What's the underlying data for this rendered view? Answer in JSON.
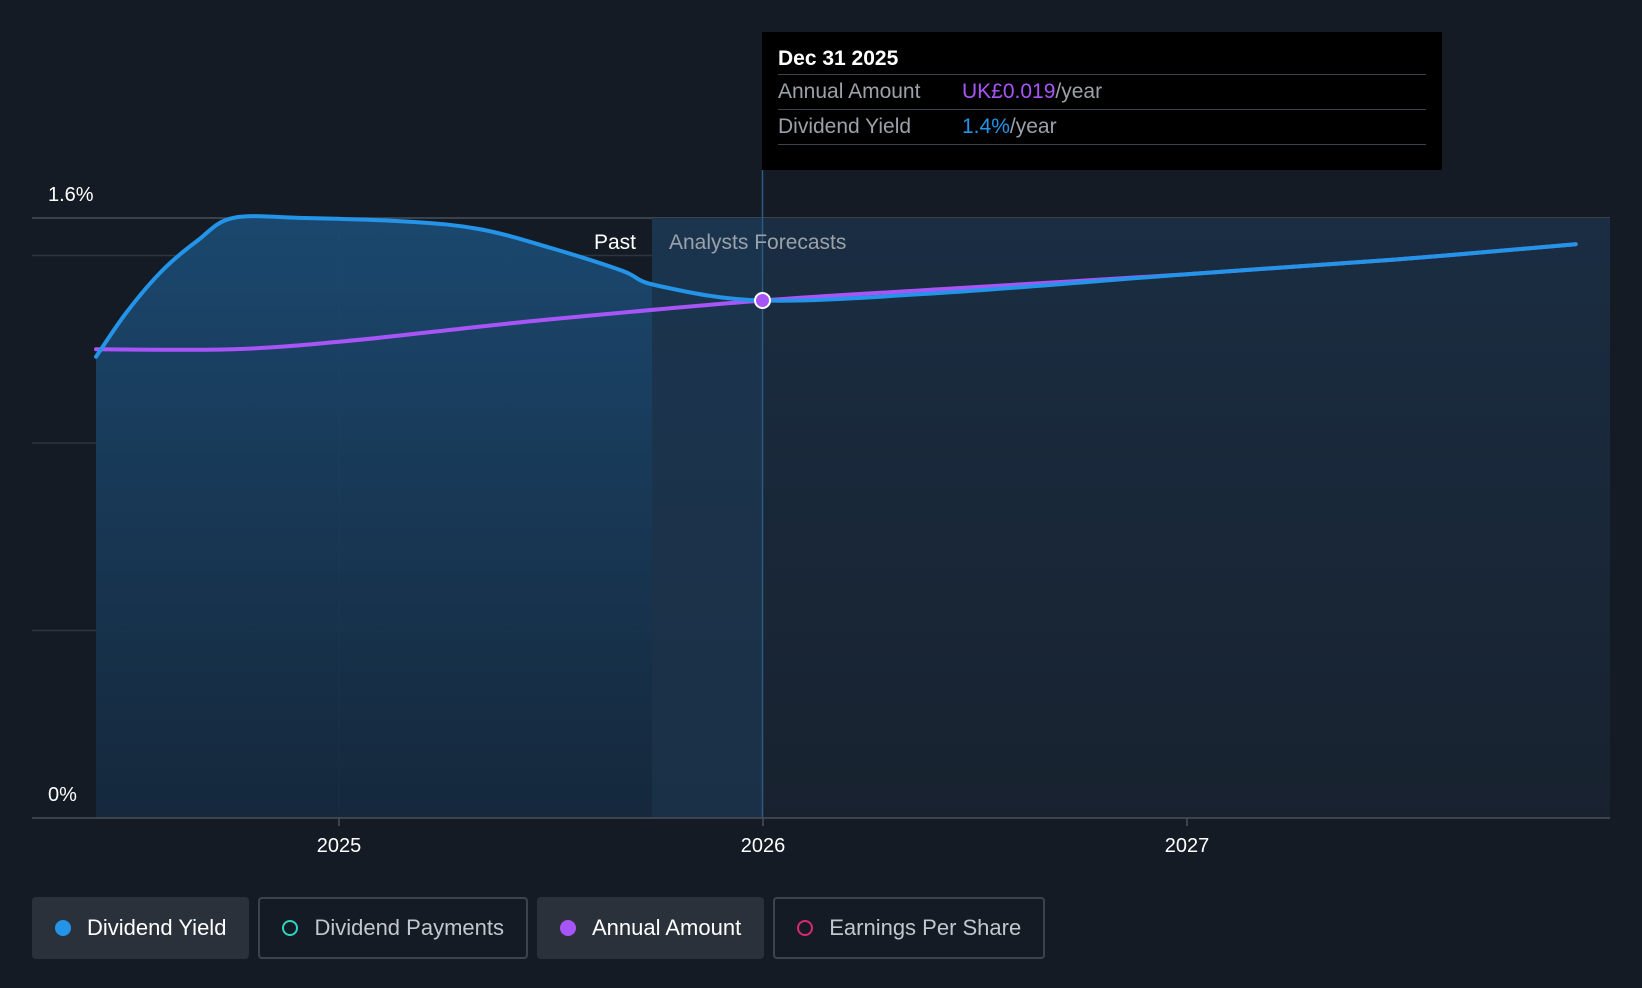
{
  "chart_data": {
    "type": "line",
    "y_ticks": [
      "1.6%",
      "0%"
    ],
    "x_ticks": [
      "2025",
      "2026",
      "2027"
    ],
    "ylim": [
      0,
      1.6
    ],
    "regions": {
      "past_label": "Past",
      "forecast_label": "Analysts Forecasts"
    },
    "series": [
      {
        "name": "Dividend Yield",
        "color": "#2394e8",
        "x": [
          "2024-06",
          "2024-07",
          "2024-08",
          "2024-09",
          "2024-10",
          "2024-12",
          "2025-03",
          "2025-05",
          "2025-07",
          "2025-09",
          "2025-10",
          "2025-12-31",
          "2026-06",
          "2027-01",
          "2027-07",
          "2027-12"
        ],
        "values": [
          1.23,
          1.35,
          1.46,
          1.54,
          1.6,
          1.6,
          1.59,
          1.57,
          1.52,
          1.46,
          1.42,
          1.38,
          1.4,
          1.45,
          1.49,
          1.53
        ]
      },
      {
        "name": "Annual Amount",
        "color": "#a855f7",
        "x": [
          "2024-06",
          "2024-10",
          "2025-01",
          "2025-04",
          "2025-07",
          "2025-12-31",
          "2026-06",
          "2027-01",
          "2027-07",
          "2027-12"
        ],
        "values": [
          1.25,
          1.25,
          1.27,
          1.3,
          1.33,
          1.38,
          1.41,
          1.45,
          1.49,
          1.53
        ]
      }
    ],
    "highlight": {
      "x": "2025-12-31",
      "value": 1.38
    }
  },
  "tooltip": {
    "date": "Dec 31 2025",
    "rows": [
      {
        "label": "Annual Amount",
        "value": "UK£0.019",
        "unit": "/year"
      },
      {
        "label": "Dividend Yield",
        "value": "1.4%",
        "unit": "/year"
      }
    ]
  },
  "legend": [
    {
      "label": "Dividend Yield",
      "color": "#2394e8",
      "active": true
    },
    {
      "label": "Dividend Payments",
      "color": "#2dd4bf",
      "active": false
    },
    {
      "label": "Annual Amount",
      "color": "#a855f7",
      "active": true
    },
    {
      "label": "Earnings Per Share",
      "color": "#db2777",
      "active": false
    }
  ]
}
